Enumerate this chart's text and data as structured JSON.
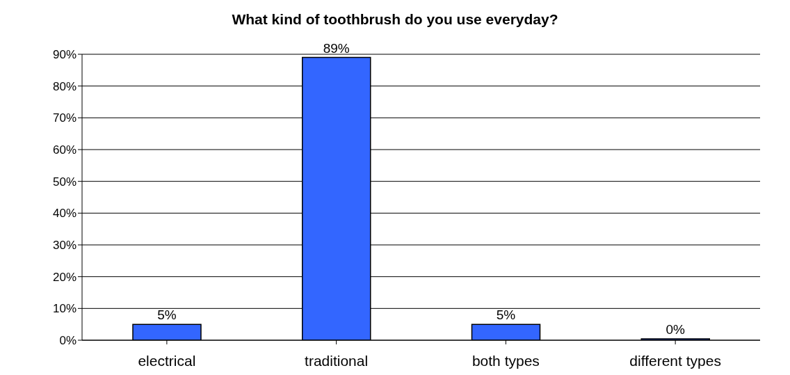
{
  "chart_data": {
    "type": "bar",
    "title": "What kind of toothbrush do you use everyday?",
    "categories": [
      "electrical",
      "traditional",
      "both types",
      "different types"
    ],
    "values": [
      5,
      89,
      5,
      0
    ],
    "value_labels": [
      "5%",
      "89%",
      "5%",
      "0%"
    ],
    "color": "#3366ff",
    "ylim": [
      0,
      90
    ],
    "yticks": [
      {
        "value": 0,
        "label": "0%"
      },
      {
        "value": 10,
        "label": "10%"
      },
      {
        "value": 20,
        "label": "20%"
      },
      {
        "value": 30,
        "label": "30%"
      },
      {
        "value": 40,
        "label": "40%"
      },
      {
        "value": 50,
        "label": "50%"
      },
      {
        "value": 60,
        "label": "60%"
      },
      {
        "value": 70,
        "label": "70%"
      },
      {
        "value": 80,
        "label": "80%"
      },
      {
        "value": 90,
        "label": "90%"
      }
    ],
    "grid": "y"
  }
}
